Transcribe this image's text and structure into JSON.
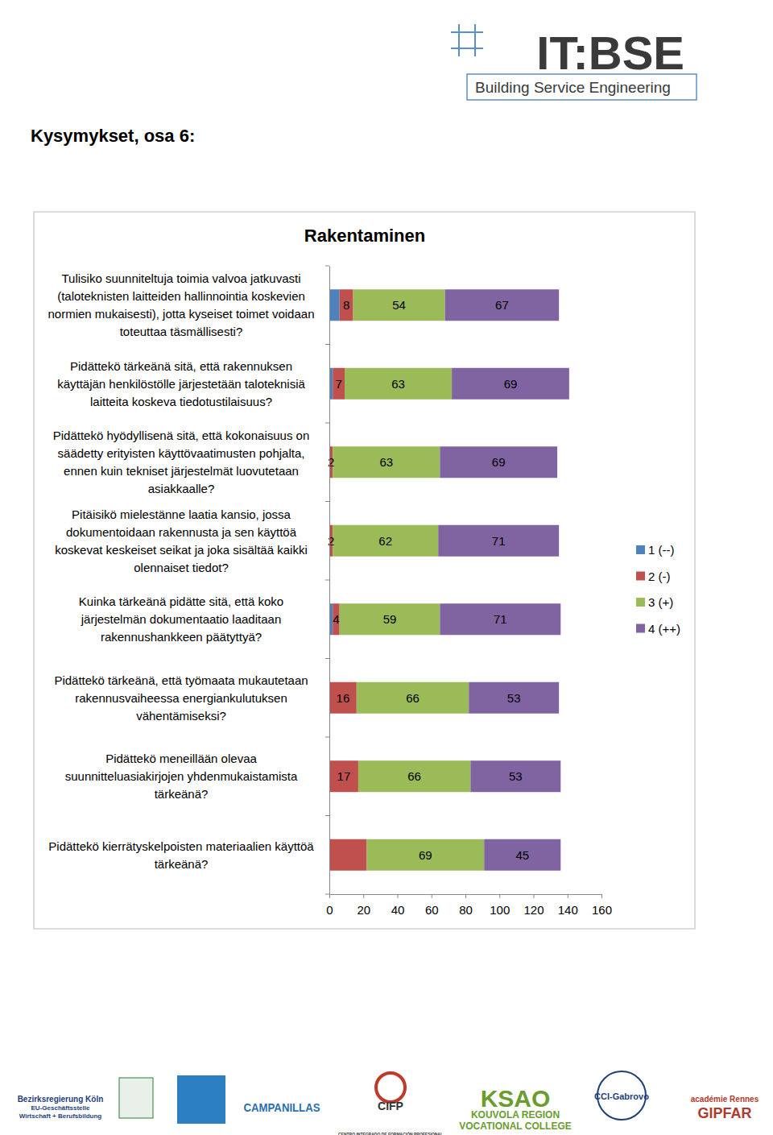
{
  "header": {
    "logo_title": "IT:BSE",
    "logo_subtitle": "Building Service Engineering",
    "heading": "Kysymykset, osa 6:"
  },
  "footer_logos": [
    {
      "lines": [
        "Bezirksregierung Köln",
        "EU-Geschäftsstelle",
        "Wirtschaft + Berufsbildung"
      ]
    },
    {
      "lines": [
        "CAMPANILLAS"
      ]
    },
    {
      "lines": [
        "CIFP",
        "CENTRO INTEGRADO DE FORMACIÓN PROFESIONAL"
      ]
    },
    {
      "lines": [
        "KSAO",
        "KOUVOLA REGION",
        "VOCATIONAL COLLEGE"
      ]
    },
    {
      "lines": [
        "CCI-Gabrovo"
      ]
    },
    {
      "lines": [
        "académie Rennes",
        "GIPFAR"
      ]
    }
  ],
  "chart_data": {
    "type": "bar",
    "title": "Rakentaminen",
    "orientation": "horizontal",
    "stacked": true,
    "data_labels": true,
    "grid": false,
    "legend": "right",
    "categories": [
      "Tulisiko suunniteltuja toimia valvoa jatkuvasti (taloteknisten laitteiden hallinnointia koskevien normien mukaisesti), jotta kyseiset toimet voidaan toteuttaa täsmällisesti?",
      "Pidättekö tärkeänä sitä, että rakennuksen käyttäjän henkilöstölle järjestetään taloteknisiä laitteita koskeva tiedotustilaisuus?",
      "Pidättekö hyödyllisenä sitä, että kokonaisuus on säädetty erityisten käyttövaatimusten pohjalta, ennen kuin tekniset järjestelmät luovutetaan asiakkaalle?",
      "Pitäisikö mielestänne laatia kansio, jossa dokumentoidaan rakennusta ja sen käyttöä koskevat keskeiset seikat ja joka sisältää kaikki olennaiset tiedot?",
      "Kuinka tärkeänä pidätte sitä, että koko järjestelmän dokumentaatio laaditaan rakennushankkeen päätyttyä?",
      "Pidättekö tärkeänä, että työmaata mukautetaan rakennusvaiheessa energiankulutuksen vähentämiseksi?",
      "Pidättekö meneillään olevaa suunnitteluasiakirjojen yhdenmukaistamista tärkeänä?",
      "Pidättekö kierrätyskelpoisten materiaalien käyttöä tärkeänä?"
    ],
    "series": [
      {
        "name": "1 (--)",
        "color": "#4f81bd",
        "values": [
          6,
          2,
          0,
          0,
          2,
          0,
          0,
          0
        ],
        "value_labels": [
          null,
          null,
          null,
          null,
          null,
          null,
          null,
          null
        ]
      },
      {
        "name": "2 (-)",
        "color": "#c0504d",
        "values": [
          8,
          7,
          2,
          2,
          4,
          16,
          17,
          22
        ],
        "value_labels": [
          "8",
          "7",
          "2",
          "2",
          "4",
          "16",
          "17",
          null
        ]
      },
      {
        "name": "3 (+)",
        "color": "#9bbb59",
        "values": [
          54,
          63,
          63,
          62,
          59,
          66,
          66,
          69
        ],
        "value_labels": [
          "54",
          "63",
          "63",
          "62",
          "59",
          "66",
          "66",
          "69"
        ]
      },
      {
        "name": "4 (++)",
        "color": "#8064a2",
        "values": [
          67,
          69,
          69,
          71,
          71,
          53,
          53,
          45
        ],
        "value_labels": [
          "67",
          "69",
          "69",
          "71",
          "71",
          "53",
          "53",
          "45"
        ]
      }
    ],
    "xlim": [
      0,
      160
    ],
    "xticks": [
      0,
      20,
      40,
      60,
      80,
      100,
      120,
      140,
      160
    ]
  }
}
